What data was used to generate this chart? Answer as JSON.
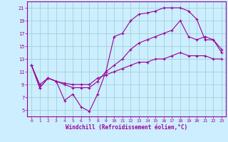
{
  "xlabel": "Windchill (Refroidissement éolien,°C)",
  "xlim": [
    -0.5,
    23.5
  ],
  "ylim": [
    4,
    22
  ],
  "yticks": [
    5,
    7,
    9,
    11,
    13,
    15,
    17,
    19,
    21
  ],
  "xticks": [
    0,
    1,
    2,
    3,
    4,
    5,
    6,
    7,
    8,
    9,
    10,
    11,
    12,
    13,
    14,
    15,
    16,
    17,
    18,
    19,
    20,
    21,
    22,
    23
  ],
  "bg_color": "#cceeff",
  "line_color": "#990099",
  "grid_color": "#99cccc",
  "line1_x": [
    0,
    1,
    2,
    3,
    4,
    5,
    6,
    7,
    8,
    9,
    10,
    11,
    12,
    13,
    14,
    15,
    16,
    17,
    18,
    19,
    20,
    21,
    22,
    23
  ],
  "line1_y": [
    12.0,
    8.5,
    10.0,
    9.5,
    6.5,
    7.5,
    5.5,
    4.8,
    7.5,
    11.0,
    16.5,
    17.0,
    19.0,
    20.0,
    20.2,
    20.5,
    21.0,
    21.0,
    21.0,
    20.5,
    19.2,
    16.0,
    16.0,
    14.0
  ],
  "line2_x": [
    0,
    1,
    2,
    3,
    4,
    5,
    6,
    7,
    8,
    9,
    10,
    11,
    12,
    13,
    14,
    15,
    16,
    17,
    18,
    19,
    20,
    21,
    22,
    23
  ],
  "line2_y": [
    12.0,
    8.5,
    10.0,
    9.5,
    9.0,
    8.5,
    8.5,
    8.5,
    9.5,
    11.0,
    12.0,
    13.0,
    14.5,
    15.5,
    16.0,
    16.5,
    17.0,
    17.5,
    19.0,
    16.5,
    16.0,
    16.5,
    16.0,
    14.5
  ],
  "line3_x": [
    0,
    1,
    2,
    3,
    4,
    5,
    6,
    7,
    8,
    9,
    10,
    11,
    12,
    13,
    14,
    15,
    16,
    17,
    18,
    19,
    20,
    21,
    22,
    23
  ],
  "line3_y": [
    12.0,
    9.0,
    10.0,
    9.5,
    9.2,
    9.0,
    9.0,
    9.0,
    10.0,
    10.5,
    11.0,
    11.5,
    12.0,
    12.5,
    12.5,
    13.0,
    13.0,
    13.5,
    14.0,
    13.5,
    13.5,
    13.5,
    13.0,
    13.0
  ]
}
